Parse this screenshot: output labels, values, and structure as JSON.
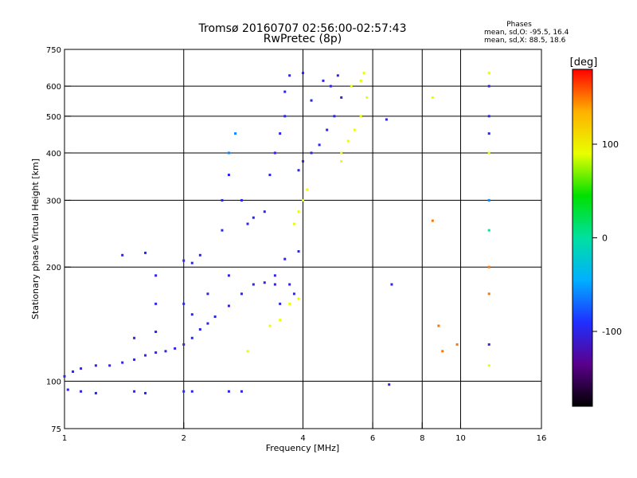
{
  "title_line1": "Tromsø 20160707 02:56:00-02:57:43",
  "title_line2": "RwPretec (8p)",
  "stats": {
    "heading": "Phases",
    "line_o": "mean, sd,O: -95.5, 16.4",
    "line_x": "mean, sd,X:  88.5, 18.6"
  },
  "colorbar": {
    "unit_label": "[deg]",
    "ticks": [
      "100",
      "0",
      "-100"
    ],
    "stops": [
      "#000000",
      "#5a008c",
      "#1f2fff",
      "#00b0ff",
      "#00e0a0",
      "#00e000",
      "#e8ff00",
      "#ffb000",
      "#ff0000"
    ]
  },
  "chart_data": {
    "type": "scatter",
    "xlabel": "Frequency [MHz]",
    "ylabel": "Stationary phase Virtual Height [km]",
    "x_scale": "log",
    "y_scale": "log",
    "xlim": [
      1,
      16
    ],
    "ylim": [
      75,
      750
    ],
    "xticks": [
      1,
      2,
      4,
      6,
      8,
      10,
      16
    ],
    "yticks": [
      75,
      100,
      200,
      300,
      400,
      500,
      600,
      750
    ],
    "grid": true,
    "grid_x": [
      2,
      4,
      6,
      8,
      10
    ],
    "grid_y": [
      100,
      200,
      300,
      400,
      500,
      600
    ],
    "points": [
      [
        1.0,
        103,
        -100
      ],
      [
        1.05,
        106,
        -100
      ],
      [
        1.1,
        108,
        -100
      ],
      [
        1.2,
        110,
        -100
      ],
      [
        1.3,
        110,
        -100
      ],
      [
        1.4,
        112,
        -100
      ],
      [
        1.5,
        114,
        -100
      ],
      [
        1.6,
        117,
        -100
      ],
      [
        1.7,
        119,
        -100
      ],
      [
        1.8,
        120,
        -100
      ],
      [
        1.9,
        122,
        -100
      ],
      [
        2.0,
        125,
        -100
      ],
      [
        2.1,
        130,
        -100
      ],
      [
        2.2,
        137,
        -100
      ],
      [
        2.3,
        142,
        -100
      ],
      [
        2.4,
        148,
        -100
      ],
      [
        2.6,
        158,
        -100
      ],
      [
        2.8,
        170,
        -100
      ],
      [
        3.0,
        180,
        -100
      ],
      [
        3.2,
        182,
        -100
      ],
      [
        3.4,
        190,
        -100
      ],
      [
        3.6,
        210,
        -100
      ],
      [
        1.02,
        95,
        -100
      ],
      [
        1.1,
        94,
        -100
      ],
      [
        1.2,
        93,
        -100
      ],
      [
        1.5,
        94,
        -100
      ],
      [
        1.6,
        93,
        -100
      ],
      [
        2.0,
        94,
        -100
      ],
      [
        2.1,
        94,
        -100
      ],
      [
        2.6,
        94,
        -100
      ],
      [
        2.8,
        94,
        -100
      ],
      [
        1.4,
        215,
        -100
      ],
      [
        1.6,
        218,
        -100
      ],
      [
        1.7,
        190,
        -100
      ],
      [
        1.7,
        160,
        -100
      ],
      [
        1.7,
        135,
        -100
      ],
      [
        1.5,
        130,
        -100
      ],
      [
        2.0,
        208,
        -100
      ],
      [
        2.1,
        205,
        -100
      ],
      [
        2.2,
        215,
        -100
      ],
      [
        2.0,
        160,
        -100
      ],
      [
        2.1,
        150,
        -100
      ],
      [
        2.3,
        170,
        -100
      ],
      [
        2.6,
        190,
        -100
      ],
      [
        2.5,
        250,
        -100
      ],
      [
        2.5,
        300,
        -100
      ],
      [
        2.6,
        350,
        -100
      ],
      [
        2.6,
        400,
        -60
      ],
      [
        2.7,
        450,
        -60
      ],
      [
        2.8,
        300,
        -100
      ],
      [
        2.9,
        260,
        -100
      ],
      [
        3.0,
        270,
        -100
      ],
      [
        3.2,
        280,
        -100
      ],
      [
        3.3,
        350,
        -100
      ],
      [
        3.4,
        400,
        -100
      ],
      [
        3.5,
        450,
        -100
      ],
      [
        3.6,
        500,
        -100
      ],
      [
        3.6,
        580,
        -100
      ],
      [
        3.7,
        640,
        -100
      ],
      [
        3.5,
        160,
        -100
      ],
      [
        3.7,
        180,
        -100
      ],
      [
        3.9,
        220,
        -100
      ],
      [
        3.4,
        180,
        -100
      ],
      [
        3.8,
        170,
        -100
      ],
      [
        3.9,
        360,
        -100
      ],
      [
        4.0,
        380,
        -100
      ],
      [
        4.2,
        400,
        -100
      ],
      [
        4.4,
        420,
        -100
      ],
      [
        4.6,
        460,
        -100
      ],
      [
        4.8,
        500,
        -100
      ],
      [
        5.0,
        560,
        -100
      ],
      [
        4.7,
        600,
        -100
      ],
      [
        4.2,
        550,
        -100
      ],
      [
        4.0,
        650,
        -100
      ],
      [
        4.5,
        620,
        -100
      ],
      [
        4.9,
        640,
        -100
      ],
      [
        3.3,
        140,
        90
      ],
      [
        3.5,
        145,
        90
      ],
      [
        3.7,
        160,
        90
      ],
      [
        3.9,
        165,
        90
      ],
      [
        2.9,
        120,
        90
      ],
      [
        3.8,
        260,
        90
      ],
      [
        3.9,
        280,
        90
      ],
      [
        4.0,
        300,
        90
      ],
      [
        4.1,
        320,
        90
      ],
      [
        5.0,
        400,
        90
      ],
      [
        5.2,
        430,
        90
      ],
      [
        5.4,
        460,
        90
      ],
      [
        5.6,
        500,
        90
      ],
      [
        5.8,
        560,
        90
      ],
      [
        5.6,
        620,
        90
      ],
      [
        5.3,
        600,
        90
      ],
      [
        5.7,
        650,
        90
      ],
      [
        5.0,
        380,
        90
      ],
      [
        6.5,
        490,
        -100
      ],
      [
        6.7,
        180,
        -100
      ],
      [
        6.6,
        98,
        -100
      ],
      [
        8.5,
        560,
        90
      ],
      [
        8.5,
        265,
        150
      ],
      [
        8.8,
        140,
        150
      ],
      [
        9.0,
        120,
        150
      ],
      [
        9.8,
        125,
        150
      ],
      [
        11.8,
        650,
        90
      ],
      [
        11.8,
        600,
        -100
      ],
      [
        11.8,
        500,
        -100
      ],
      [
        11.8,
        450,
        -100
      ],
      [
        11.8,
        400,
        90
      ],
      [
        11.8,
        300,
        -60
      ],
      [
        11.8,
        250,
        0
      ],
      [
        11.8,
        200,
        150
      ],
      [
        11.8,
        170,
        150
      ],
      [
        11.8,
        125,
        -100
      ],
      [
        11.8,
        110,
        90
      ]
    ]
  }
}
